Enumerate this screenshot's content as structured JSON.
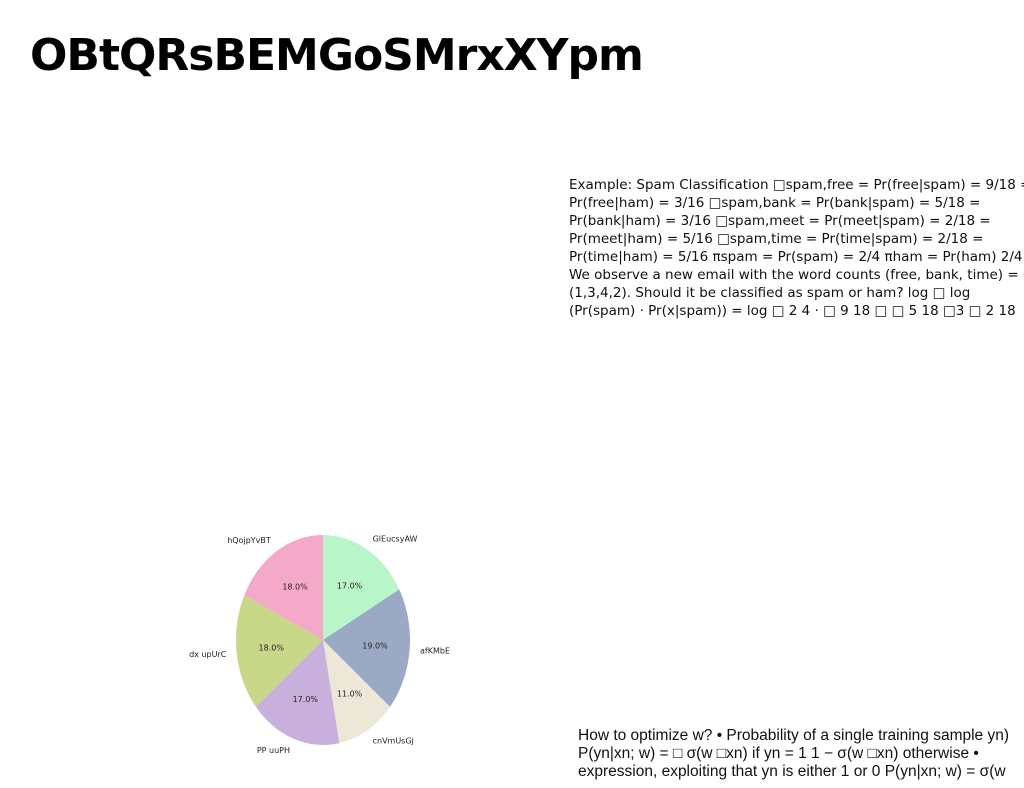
{
  "title": "OBtQRsBEMGoSMrxXYpm",
  "paragraph_1": "Example: Spam Classification □spam,free = Pr(free|spam) = 9/18 = Pr(free|ham) = 3/16 □spam,bank = Pr(bank|spam) = 5/18 = Pr(bank|ham) = 3/16 □spam,meet = Pr(meet|spam) = 2/18 = Pr(meet|ham) = 5/16 □spam,time = Pr(time|spam) = 2/18 = Pr(time|ham) = 5/16 πspam = Pr(spam) = 2/4 πham = Pr(ham) 2/4 We observe a new email with the word counts (free, bank, time) = (1,3,4,2). Should it be classified as spam or ham? log □ log (Pr(spam) · Pr(x|spam)) = log □ 2 4 · □ 9 18 □ □ 5 18 □3 □ 2 18",
  "paragraph_2": "How to optimize w? • Probability of a single training sample yn) P(yn|xn; w) = □ σ(w □xn) if yn = 1 1 − σ(w □xn) otherwise • expression, exploiting that yn is either 1 or 0 P(yn|xn; w) = σ(w",
  "chart_data": {
    "type": "pie",
    "categories": [
      "GlEucsyAW",
      "afKMbE",
      "cnVmUsGj",
      "PP uuPH",
      "dx upUrC",
      "hQojpYvBT"
    ],
    "values": [
      17.0,
      19.0,
      11.0,
      17.0,
      18.0,
      18.0
    ],
    "value_labels": [
      "17.0%",
      "19.0%",
      "11.0%",
      "17.0%",
      "18.0%",
      "18.0%"
    ],
    "colors": [
      "#b8f5c9",
      "#9aaac4",
      "#ede7d7",
      "#c9afdb",
      "#c8d888",
      "#f5a9c9"
    ]
  }
}
